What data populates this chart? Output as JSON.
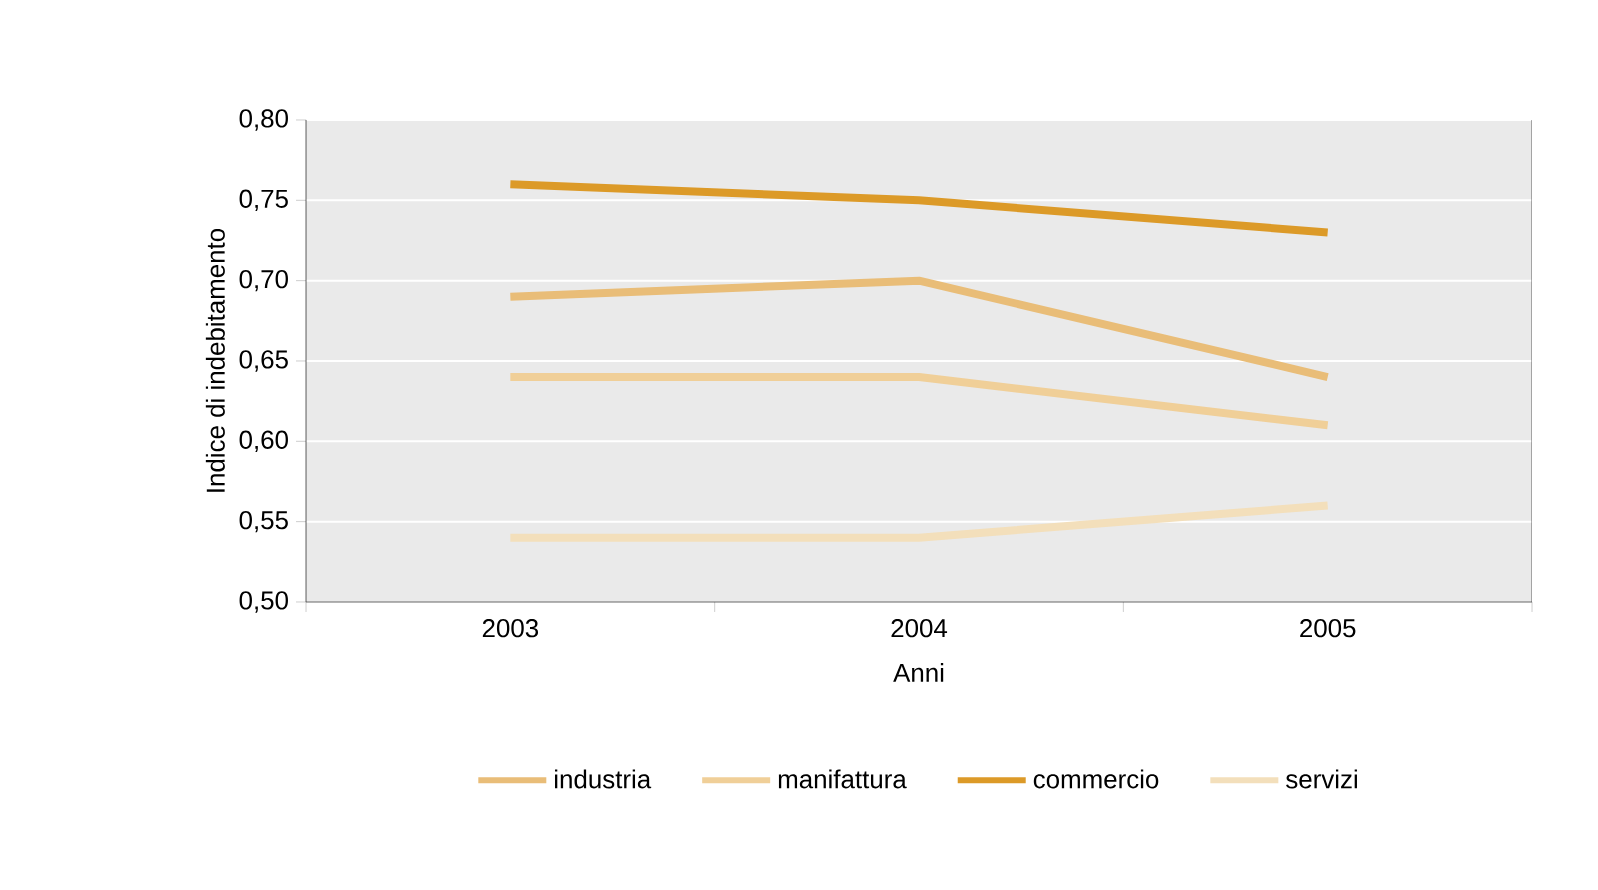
{
  "chart_data": {
    "type": "line",
    "xlabel": "Anni",
    "ylabel": "Indice di indebitamento",
    "categories": [
      "2003",
      "2004",
      "2005"
    ],
    "series": [
      {
        "name": "industria",
        "color": "#e9bd78",
        "values": [
          0.69,
          0.7,
          0.64
        ]
      },
      {
        "name": "manifattura",
        "color": "#f0cf98",
        "values": [
          0.64,
          0.64,
          0.61
        ]
      },
      {
        "name": "commercio",
        "color": "#dc9a28",
        "values": [
          0.76,
          0.75,
          0.73
        ]
      },
      {
        "name": "servizi",
        "color": "#f3dfbb",
        "values": [
          0.54,
          0.54,
          0.56
        ]
      }
    ],
    "ylim": [
      0.5,
      0.8
    ],
    "yticks": [
      {
        "value": 0.5,
        "label": "0,50"
      },
      {
        "value": 0.55,
        "label": "0,55"
      },
      {
        "value": 0.6,
        "label": "0,60"
      },
      {
        "value": 0.65,
        "label": "0,65"
      },
      {
        "value": 0.7,
        "label": "0,70"
      },
      {
        "value": 0.75,
        "label": "0,75"
      },
      {
        "value": 0.8,
        "label": "0,80"
      }
    ],
    "grid": "y",
    "legend": "bottom",
    "marker": "none",
    "line_style": "solid"
  }
}
